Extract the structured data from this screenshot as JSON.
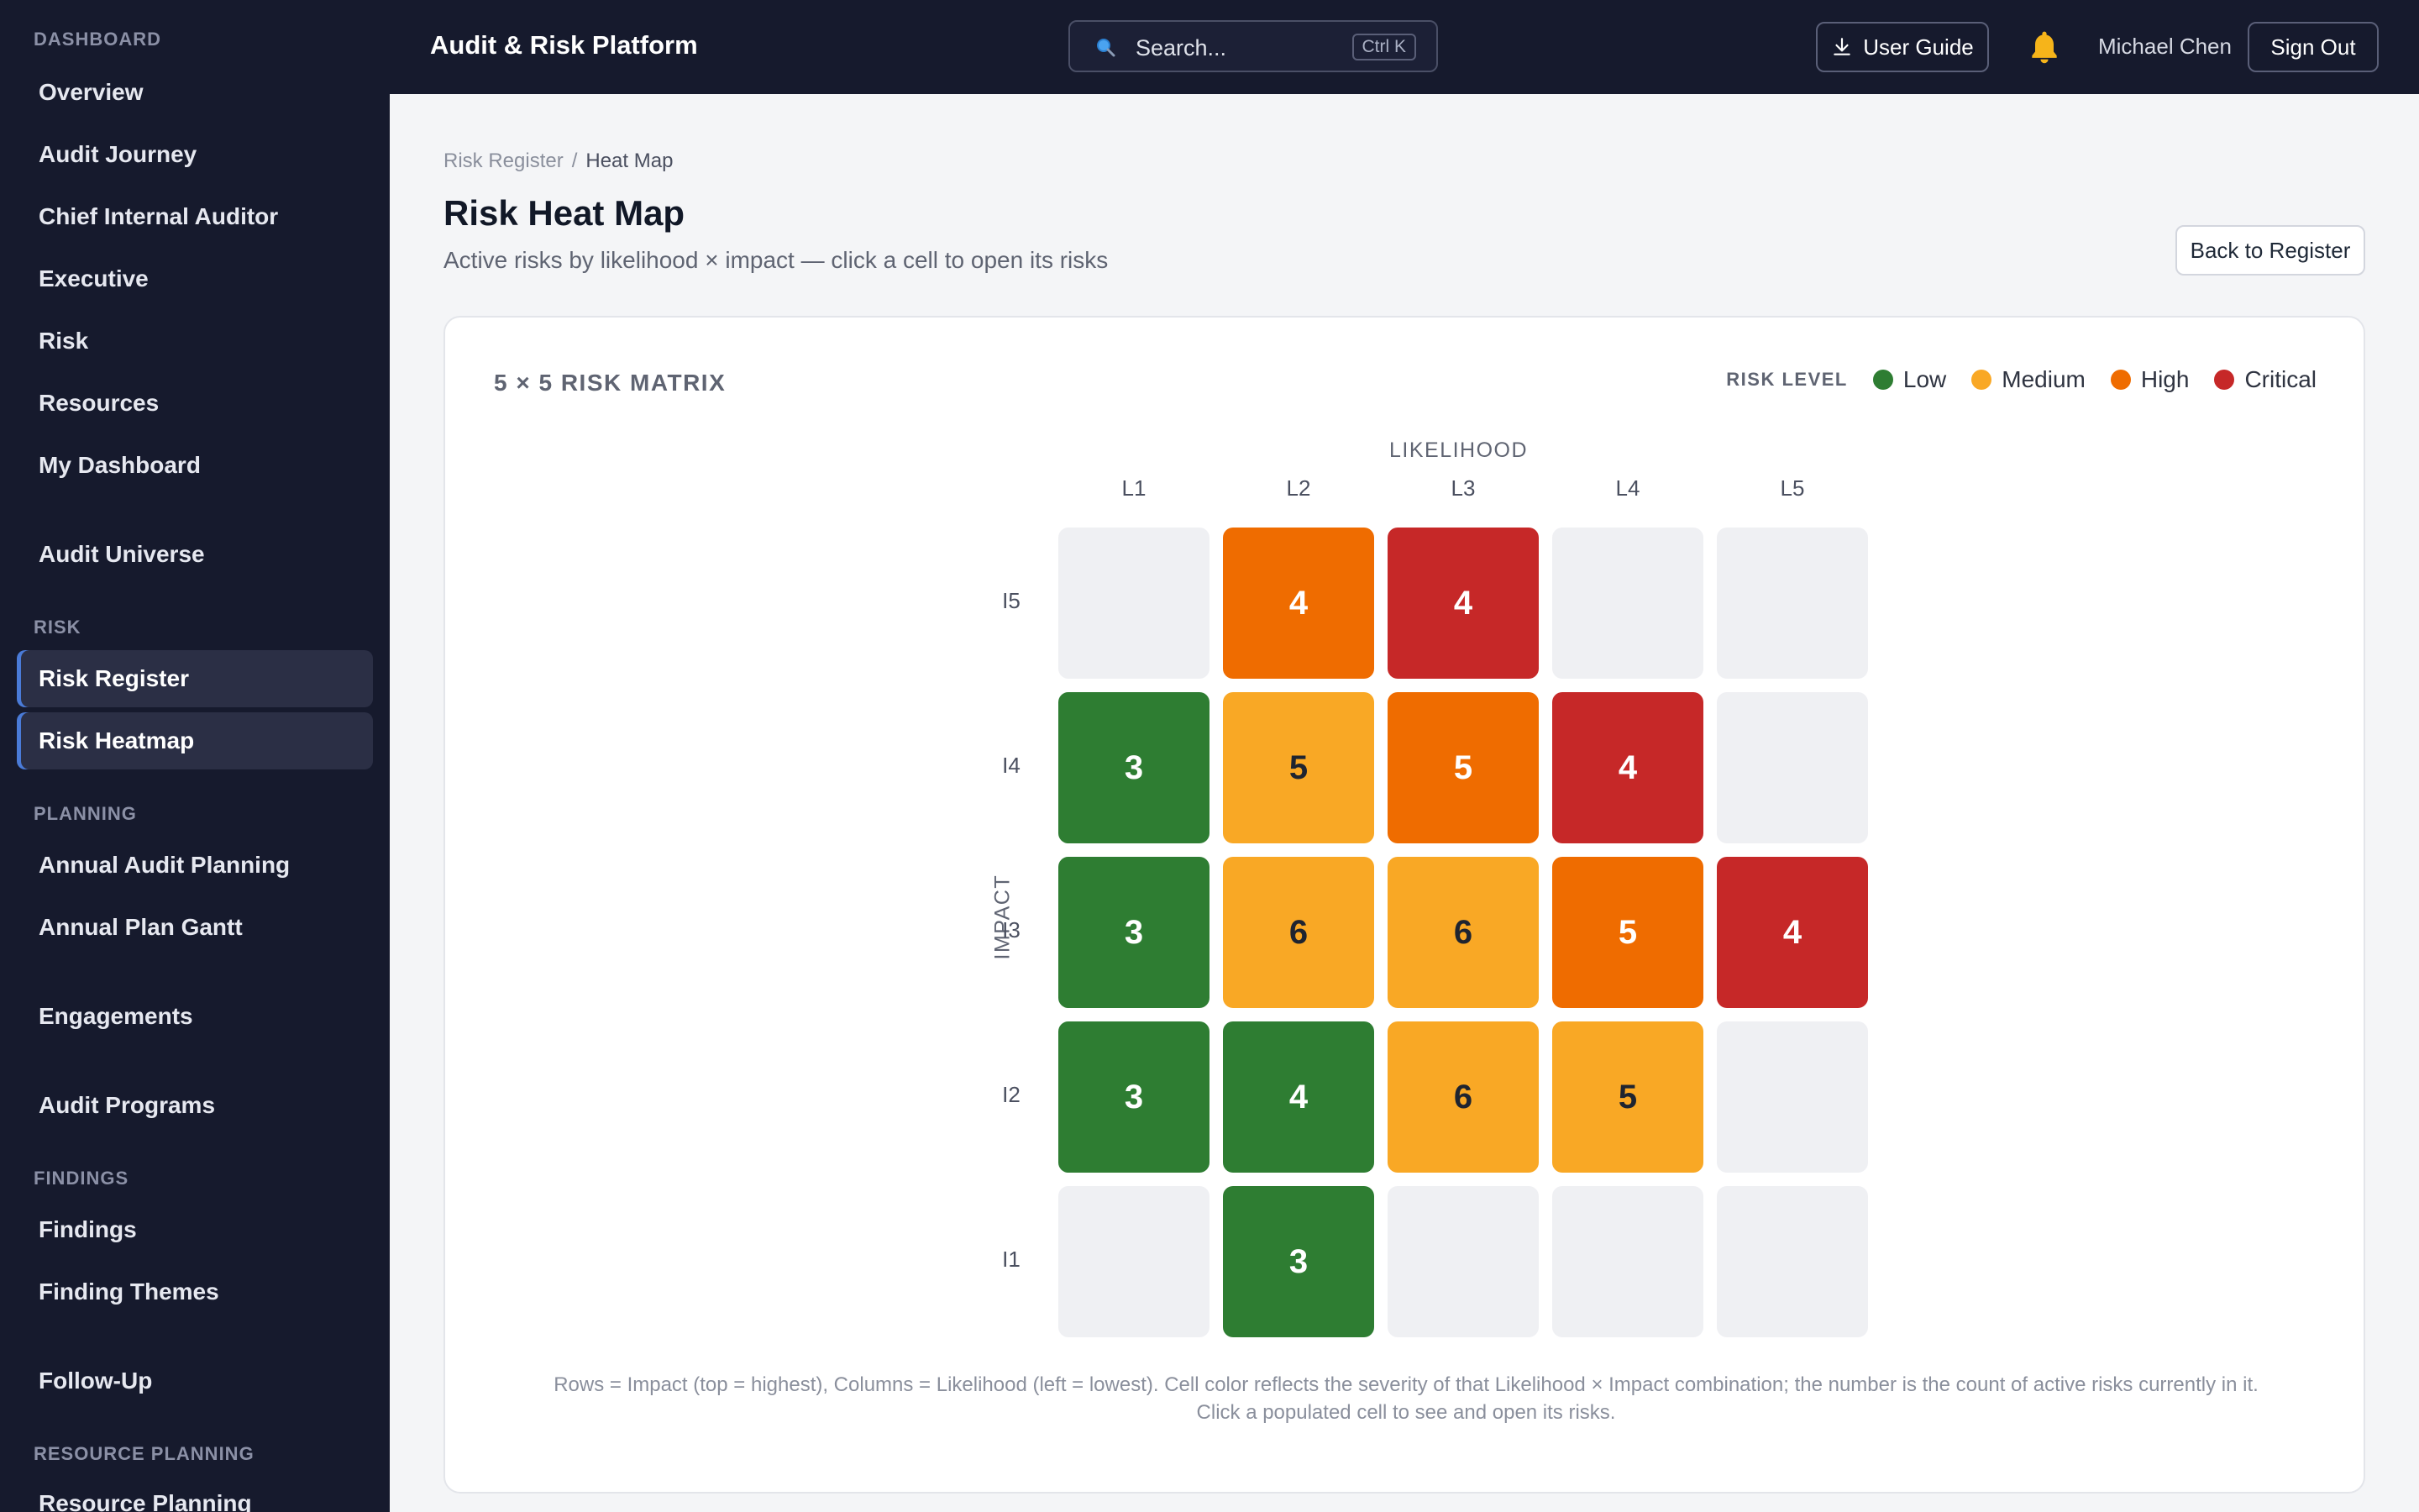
{
  "sidebar": {
    "sections": {
      "dashboard": "DASHBOARD",
      "risk": "RISK",
      "planning": "PLANNING",
      "findings": "FINDINGS",
      "resource_planning": "RESOURCE PLANNING"
    },
    "items": {
      "overview": "Overview",
      "audit_journey": "Audit Journey",
      "chief_internal_auditor": "Chief Internal Auditor",
      "executive": "Executive",
      "risk": "Risk",
      "resources": "Resources",
      "my_dashboard": "My Dashboard",
      "audit_universe": "Audit Universe",
      "risk_register": "Risk Register",
      "risk_heatmap": "Risk Heatmap",
      "annual_audit_planning": "Annual Audit Planning",
      "annual_plan_gantt": "Annual Plan Gantt",
      "engagements": "Engagements",
      "audit_programs": "Audit Programs",
      "findings": "Findings",
      "finding_themes": "Finding Themes",
      "follow_up": "Follow-Up",
      "resource_planning": "Resource Planning"
    },
    "active": [
      "risk_register",
      "risk_heatmap"
    ]
  },
  "topbar": {
    "brand": "Audit & Risk Platform",
    "search_placeholder": "Search...",
    "search_shortcut": "Ctrl K",
    "user_guide_label": "User Guide",
    "user_name": "Michael Chen",
    "sign_out_label": "Sign Out"
  },
  "header": {
    "breadcrumb_parent": "Risk Register",
    "breadcrumb_separator": "/",
    "breadcrumb_current": "Heat Map",
    "title": "Risk Heat Map",
    "subtitle": "Active risks by likelihood × impact — click a cell to open its risks",
    "back_button": "Back to Register"
  },
  "matrix": {
    "title": "5 × 5 RISK MATRIX",
    "legend_title": "RISK LEVEL",
    "legend": [
      {
        "label": "Low",
        "color": "#2e7d32"
      },
      {
        "label": "Medium",
        "color": "#f9a825"
      },
      {
        "label": "High",
        "color": "#ef6c00"
      },
      {
        "label": "Critical",
        "color": "#c62828"
      }
    ],
    "x_axis_title": "LIKELIHOOD",
    "y_axis_title": "IMPACT",
    "columns": [
      "L1",
      "L2",
      "L3",
      "L4",
      "L5"
    ],
    "rows": [
      "I5",
      "I4",
      "I3",
      "I2",
      "I1"
    ],
    "level_colors": {
      "empty": "#eff0f3",
      "low": "#2e7d32",
      "medium": "#f9a825",
      "high": "#ef6c00",
      "critical": "#c62828"
    },
    "cells": [
      [
        {
          "level": "empty",
          "count": ""
        },
        {
          "level": "high",
          "count": "4"
        },
        {
          "level": "critical",
          "count": "4"
        },
        {
          "level": "empty",
          "count": ""
        },
        {
          "level": "empty",
          "count": ""
        }
      ],
      [
        {
          "level": "low",
          "count": "3"
        },
        {
          "level": "medium",
          "count": "5"
        },
        {
          "level": "high",
          "count": "5"
        },
        {
          "level": "critical",
          "count": "4"
        },
        {
          "level": "empty",
          "count": ""
        }
      ],
      [
        {
          "level": "low",
          "count": "3"
        },
        {
          "level": "medium",
          "count": "6"
        },
        {
          "level": "medium",
          "count": "6"
        },
        {
          "level": "high",
          "count": "5"
        },
        {
          "level": "critical",
          "count": "4"
        }
      ],
      [
        {
          "level": "low",
          "count": "3"
        },
        {
          "level": "low",
          "count": "4"
        },
        {
          "level": "medium",
          "count": "6"
        },
        {
          "level": "medium",
          "count": "5"
        },
        {
          "level": "empty",
          "count": ""
        }
      ],
      [
        {
          "level": "empty",
          "count": ""
        },
        {
          "level": "low",
          "count": "3"
        },
        {
          "level": "empty",
          "count": ""
        },
        {
          "level": "empty",
          "count": ""
        },
        {
          "level": "empty",
          "count": ""
        }
      ]
    ],
    "footnote_line1": "Rows = Impact (top = highest), Columns = Likelihood (left = lowest). Cell color reflects the severity of that Likelihood × Impact combination; the number is the count of active risks currently in it.",
    "footnote_line2": "Click a populated cell to see and open its risks."
  }
}
